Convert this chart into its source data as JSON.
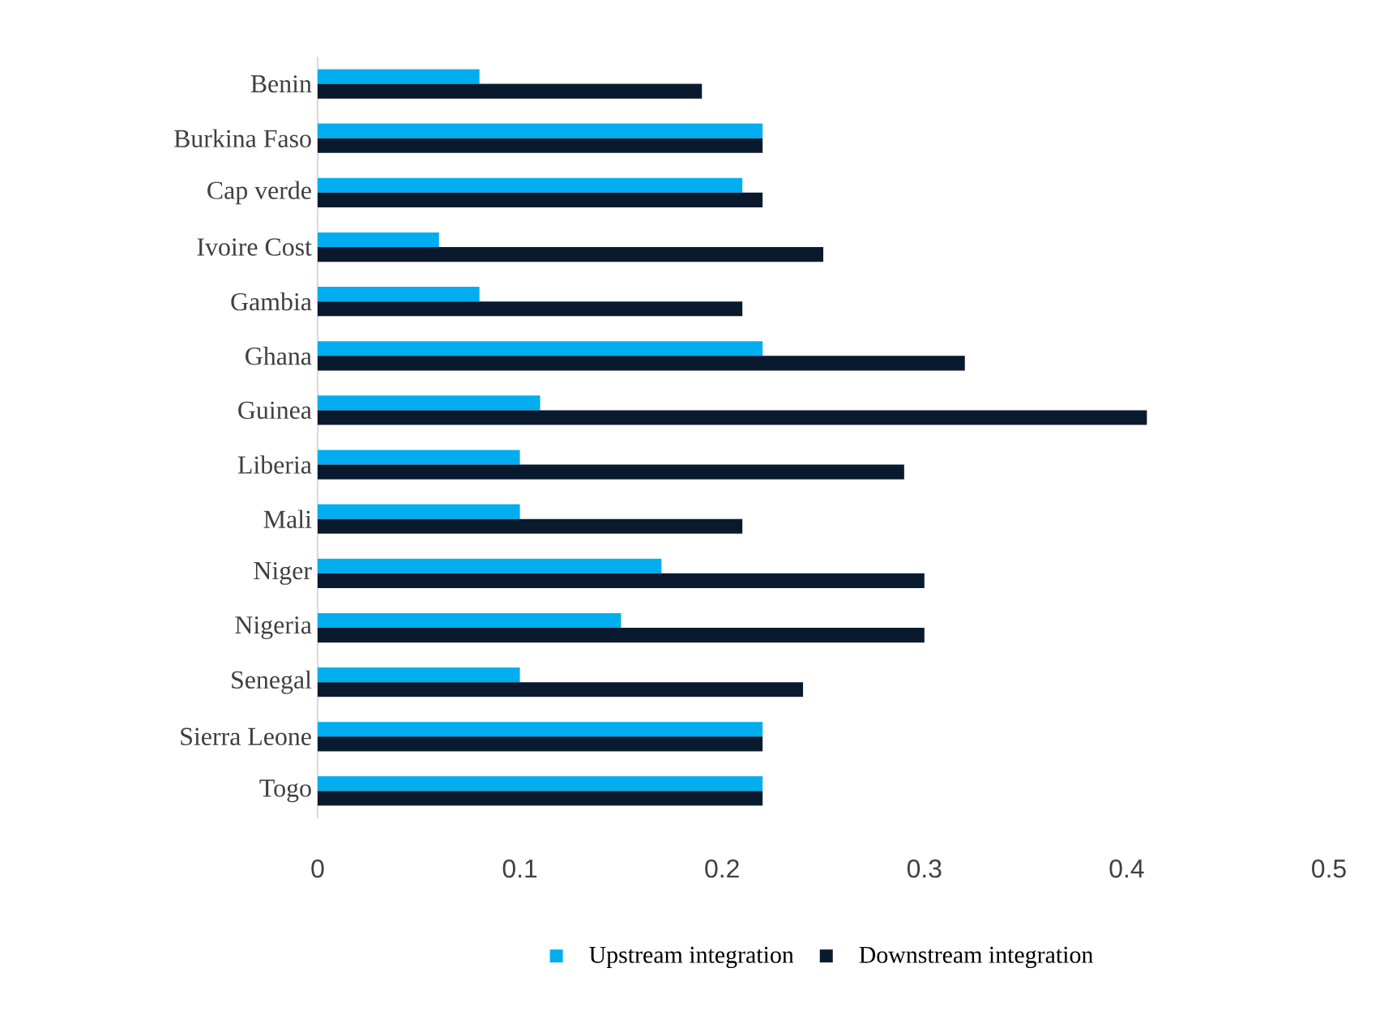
{
  "chart_data": {
    "type": "bar",
    "orientation": "horizontal",
    "categories": [
      "Benin",
      "Burkina Faso",
      "Cap verde",
      "Ivoire Cost",
      "Gambia",
      "Ghana",
      "Guinea",
      "Liberia",
      "Mali",
      "Niger",
      "Nigeria",
      "Senegal",
      "Sierra Leone",
      "Togo"
    ],
    "series": [
      {
        "name": "Upstream integration",
        "color": "#00aeef",
        "values": [
          0.08,
          0.22,
          0.21,
          0.06,
          0.08,
          0.22,
          0.11,
          0.1,
          0.1,
          0.17,
          0.15,
          0.1,
          0.22,
          0.22
        ]
      },
      {
        "name": "Downstream integration",
        "color": "#0a1a2e",
        "values": [
          0.19,
          0.22,
          0.22,
          0.25,
          0.21,
          0.32,
          0.41,
          0.29,
          0.21,
          0.3,
          0.3,
          0.24,
          0.22,
          0.22
        ]
      }
    ],
    "xlim": [
      0,
      0.5
    ],
    "xticks": [
      0,
      0.1,
      0.2,
      0.3,
      0.4,
      0.5
    ],
    "legend": "bottom"
  }
}
